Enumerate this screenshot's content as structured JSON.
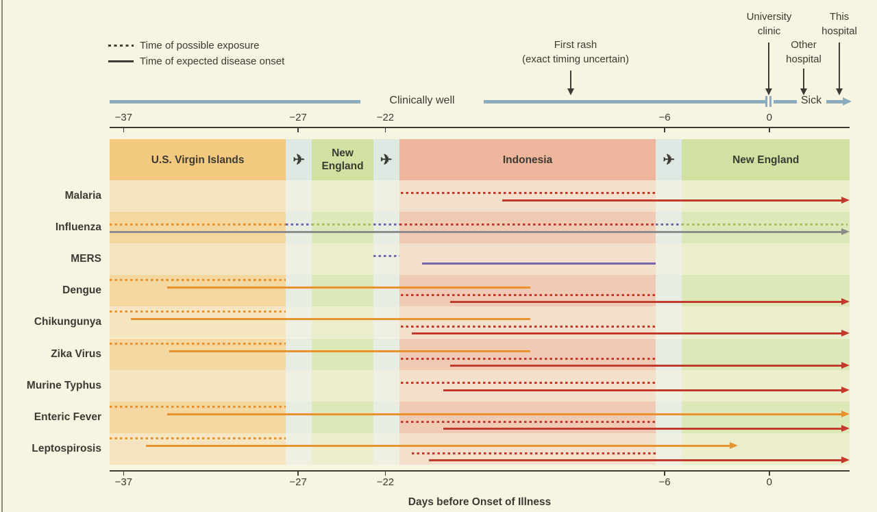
{
  "palette": {
    "background": "#F8F4E2",
    "text": "#3B3A33",
    "left_rule": "#8B8577",
    "bands": {
      "usvi": "#F3C87F",
      "newengland": "#D0E1A2",
      "indonesia": "#ECB59C",
      "travel": "#DFE9E4"
    },
    "lines": {
      "orange": "#E8922E",
      "red": "#C23A2B",
      "purple": "#7467AF",
      "green": "#A6C05F",
      "gray": "#8C8C8C"
    }
  },
  "icons": {
    "plane": "✈"
  },
  "legend": {
    "dashed_label": "Time of possible exposure",
    "solid_label": "Time of expected disease onset"
  },
  "annotations": {
    "first_rash": {
      "line1": "First rash",
      "line2": "(exact timing uncertain)"
    },
    "university_clinic": {
      "line1": "University",
      "line2": "clinic"
    },
    "other_hospital": {
      "line1": "Other",
      "line2": "hospital"
    },
    "this_hospital": {
      "line1": "This",
      "line2": "hospital"
    }
  },
  "timeline": {
    "well_label": "Clinically well",
    "sick_label": "Sick",
    "color": "#8AABBE"
  },
  "chart_data": {
    "type": "timeline",
    "x_axis": {
      "label": "Days before Onset of Illness",
      "ticks": [
        -37,
        -27,
        -22,
        -6,
        0
      ]
    },
    "x_range": [
      -37.8,
      4.6
    ],
    "locations": [
      {
        "label": "U.S. Virgin Islands",
        "kind": "region",
        "color_key": "usvi",
        "start": -37.8,
        "end": -27.7
      },
      {
        "label": "",
        "kind": "travel",
        "start": -27.7,
        "end": -26.2
      },
      {
        "label": "New England",
        "kind": "region",
        "color_key": "newengland",
        "start": -26.2,
        "end": -22.7
      },
      {
        "label": "",
        "kind": "travel",
        "start": -22.7,
        "end": -21.2
      },
      {
        "label": "Indonesia",
        "kind": "region",
        "color_key": "indonesia",
        "start": -21.2,
        "end": -6.5
      },
      {
        "label": "",
        "kind": "travel",
        "start": -6.5,
        "end": -5.0
      },
      {
        "label": "New England",
        "kind": "region",
        "color_key": "newengland",
        "start": -5.0,
        "end": 4.6
      }
    ],
    "rows": [
      {
        "disease": "Malaria",
        "segments": [
          {
            "style": "dashed",
            "color": "red",
            "start": -21.1,
            "end": -6.5,
            "track": 1
          },
          {
            "style": "solid",
            "color": "red",
            "start": -15.3,
            "end": 4.6,
            "arrow": true,
            "track": 2
          }
        ]
      },
      {
        "disease": "Influenza",
        "segments": [
          {
            "style": "dashed",
            "color": "orange",
            "start": -37.8,
            "end": -27.7,
            "track": 1
          },
          {
            "style": "dashed",
            "color": "purple",
            "start": -27.7,
            "end": -26.2,
            "track": 1
          },
          {
            "style": "dashed",
            "color": "green",
            "start": -26.2,
            "end": -22.7,
            "track": 1
          },
          {
            "style": "dashed",
            "color": "purple",
            "start": -22.7,
            "end": -21.2,
            "track": 1
          },
          {
            "style": "dashed",
            "color": "red",
            "start": -21.2,
            "end": -6.5,
            "track": 1
          },
          {
            "style": "dashed",
            "color": "purple",
            "start": -6.5,
            "end": -5.0,
            "track": 1
          },
          {
            "style": "dashed",
            "color": "green",
            "start": -5.0,
            "end": 4.5,
            "track": 1
          },
          {
            "style": "solid",
            "color": "gray",
            "start": -37.8,
            "end": 4.6,
            "arrow": true,
            "track": 2
          }
        ]
      },
      {
        "disease": "MERS",
        "segments": [
          {
            "style": "dashed",
            "color": "purple",
            "start": -22.7,
            "end": -21.2,
            "track": 1
          },
          {
            "style": "solid",
            "color": "purple",
            "start": -19.9,
            "end": -6.5,
            "track": 2
          }
        ]
      },
      {
        "disease": "Dengue",
        "segments": [
          {
            "style": "dashed",
            "color": "orange",
            "start": -37.8,
            "end": -27.7,
            "track": 0
          },
          {
            "style": "solid",
            "color": "orange",
            "start": -34.5,
            "end": -13.7,
            "track": 1
          },
          {
            "style": "dashed",
            "color": "red",
            "start": -21.1,
            "end": -6.5,
            "track": 2
          },
          {
            "style": "solid",
            "color": "red",
            "start": -18.3,
            "end": 4.6,
            "arrow": true,
            "track": 3
          }
        ]
      },
      {
        "disease": "Chikungunya",
        "segments": [
          {
            "style": "dashed",
            "color": "orange",
            "start": -37.8,
            "end": -27.7,
            "track": 0
          },
          {
            "style": "solid",
            "color": "orange",
            "start": -36.6,
            "end": -13.7,
            "track": 1
          },
          {
            "style": "dashed",
            "color": "red",
            "start": -21.1,
            "end": -6.5,
            "track": 2
          },
          {
            "style": "solid",
            "color": "red",
            "start": -20.5,
            "end": 4.6,
            "arrow": true,
            "track": 3
          }
        ]
      },
      {
        "disease": "Zika Virus",
        "segments": [
          {
            "style": "dashed",
            "color": "orange",
            "start": -37.8,
            "end": -27.7,
            "track": 0
          },
          {
            "style": "solid",
            "color": "orange",
            "start": -34.4,
            "end": -13.7,
            "track": 1
          },
          {
            "style": "dashed",
            "color": "red",
            "start": -21.1,
            "end": -6.5,
            "track": 2
          },
          {
            "style": "solid",
            "color": "red",
            "start": -18.3,
            "end": 4.6,
            "arrow": true,
            "track": 3
          }
        ]
      },
      {
        "disease": "Murine Typhus",
        "segments": [
          {
            "style": "dashed",
            "color": "red",
            "start": -21.1,
            "end": -6.5,
            "track": 1
          },
          {
            "style": "solid",
            "color": "red",
            "start": -18.7,
            "end": 4.6,
            "arrow": true,
            "track": 2
          }
        ]
      },
      {
        "disease": "Enteric Fever",
        "segments": [
          {
            "style": "dashed",
            "color": "orange",
            "start": -37.8,
            "end": -27.7,
            "track": 0
          },
          {
            "style": "solid",
            "color": "orange",
            "start": -34.5,
            "end": 4.6,
            "arrow": true,
            "track": 1
          },
          {
            "style": "dashed",
            "color": "red",
            "start": -21.1,
            "end": -6.5,
            "track": 2
          },
          {
            "style": "solid",
            "color": "red",
            "start": -18.7,
            "end": 4.6,
            "arrow": true,
            "track": 3
          }
        ]
      },
      {
        "disease": "Leptospirosis",
        "segments": [
          {
            "style": "dashed",
            "color": "orange",
            "start": -37.8,
            "end": -27.7,
            "track": 0
          },
          {
            "style": "solid",
            "color": "orange",
            "start": -35.7,
            "end": -1.8,
            "arrow": true,
            "track": 1
          },
          {
            "style": "dashed",
            "color": "red",
            "start": -20.5,
            "end": -6.5,
            "track": 2
          },
          {
            "style": "solid",
            "color": "red",
            "start": -19.5,
            "end": 4.6,
            "arrow": true,
            "track": 3
          }
        ]
      }
    ]
  }
}
